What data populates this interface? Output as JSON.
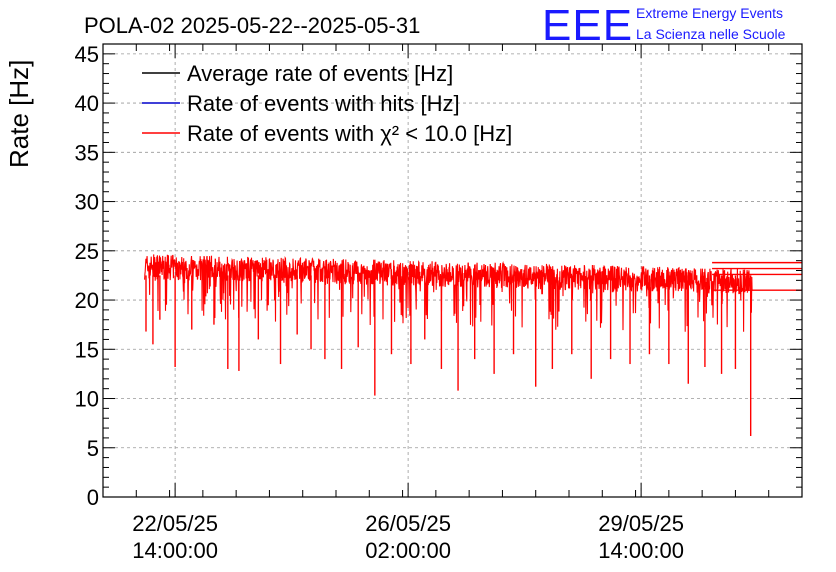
{
  "chart_data": {
    "type": "line",
    "title": "POLA-02 2025-05-22--2025-05-31",
    "ylabel": "Rate [Hz]",
    "xlabel": "",
    "ylim": [
      0,
      46
    ],
    "y_ticks": [
      0,
      5,
      10,
      15,
      20,
      25,
      30,
      35,
      40,
      45
    ],
    "x_range": [
      "2025-05-21 12:00:00",
      "2025-06-01 00:00:00"
    ],
    "x_ticks": [
      {
        "date": "22/05/25",
        "time": "14:00:00",
        "x": "2025-05-22 14:00:00"
      },
      {
        "date": "26/05/25",
        "time": "02:00:00",
        "x": "2025-05-26 02:00:00"
      },
      {
        "date": "29/05/25",
        "time": "14:00:00",
        "x": "2025-05-29 14:00:00"
      }
    ],
    "grid": true,
    "legend_position": "top-left",
    "series": [
      {
        "name": "Average rate of events [Hz]",
        "color": "#000000",
        "values": []
      },
      {
        "name": "Rate of events with hits [Hz]",
        "color": "#0000cc",
        "values": []
      },
      {
        "name": "Rate of events with χ² < 10.0 [Hz]",
        "color": "#ff0000",
        "approximate_band": {
          "x_start": "2025-05-22 03:00:00",
          "x_end": "2025-05-31 06:00:00",
          "baseline_start": 23.5,
          "baseline_end": 22.0,
          "upper_envelope": 24.5
        },
        "dips": [
          {
            "x": "2025-05-22 03:30:00",
            "y": 16.8
          },
          {
            "x": "2025-05-22 06:00:00",
            "y": 15.5
          },
          {
            "x": "2025-05-22 08:30:00",
            "y": 18.0
          },
          {
            "x": "2025-05-22 14:00:00",
            "y": 13.2
          },
          {
            "x": "2025-05-22 20:00:00",
            "y": 17.0
          },
          {
            "x": "2025-05-23 04:00:00",
            "y": 17.5
          },
          {
            "x": "2025-05-23 09:00:00",
            "y": 13.0
          },
          {
            "x": "2025-05-23 13:00:00",
            "y": 12.8
          },
          {
            "x": "2025-05-23 20:00:00",
            "y": 16.0
          },
          {
            "x": "2025-05-24 04:00:00",
            "y": 13.5
          },
          {
            "x": "2025-05-24 10:00:00",
            "y": 16.5
          },
          {
            "x": "2025-05-24 15:00:00",
            "y": 15.0
          },
          {
            "x": "2025-05-24 20:00:00",
            "y": 14.0
          },
          {
            "x": "2025-05-25 02:00:00",
            "y": 13.0
          },
          {
            "x": "2025-05-25 08:00:00",
            "y": 15.2
          },
          {
            "x": "2025-05-25 14:00:00",
            "y": 10.3
          },
          {
            "x": "2025-05-25 20:00:00",
            "y": 14.5
          },
          {
            "x": "2025-05-26 03:00:00",
            "y": 13.5
          },
          {
            "x": "2025-05-26 08:00:00",
            "y": 16.0
          },
          {
            "x": "2025-05-26 14:00:00",
            "y": 13.0
          },
          {
            "x": "2025-05-26 20:00:00",
            "y": 10.8
          },
          {
            "x": "2025-05-27 02:00:00",
            "y": 14.0
          },
          {
            "x": "2025-05-27 09:00:00",
            "y": 12.5
          },
          {
            "x": "2025-05-27 16:00:00",
            "y": 14.5
          },
          {
            "x": "2025-05-28 00:00:00",
            "y": 11.2
          },
          {
            "x": "2025-05-28 06:00:00",
            "y": 13.0
          },
          {
            "x": "2025-05-28 13:00:00",
            "y": 14.5
          },
          {
            "x": "2025-05-28 20:00:00",
            "y": 12.0
          },
          {
            "x": "2025-05-29 03:00:00",
            "y": 14.0
          },
          {
            "x": "2025-05-29 10:00:00",
            "y": 13.5
          },
          {
            "x": "2025-05-29 17:00:00",
            "y": 14.5
          },
          {
            "x": "2025-05-30 00:00:00",
            "y": 13.5
          },
          {
            "x": "2025-05-30 07:00:00",
            "y": 11.5
          },
          {
            "x": "2025-05-30 13:00:00",
            "y": 13.2
          },
          {
            "x": "2025-05-30 19:00:00",
            "y": 12.5
          },
          {
            "x": "2025-05-31 00:00:00",
            "y": 13.0
          },
          {
            "x": "2025-05-31 05:30:00",
            "y": 6.2
          }
        ],
        "tail_levels": [
          23.8,
          23.2,
          22.6,
          21.0
        ]
      }
    ]
  },
  "logo": {
    "mark": "EEE",
    "line1": "Extreme Energy Events",
    "line2": "La Scienza nelle Scuole"
  },
  "colors": {
    "frame": "#000000",
    "grid": "#999999",
    "logo": "#1a1aff"
  }
}
